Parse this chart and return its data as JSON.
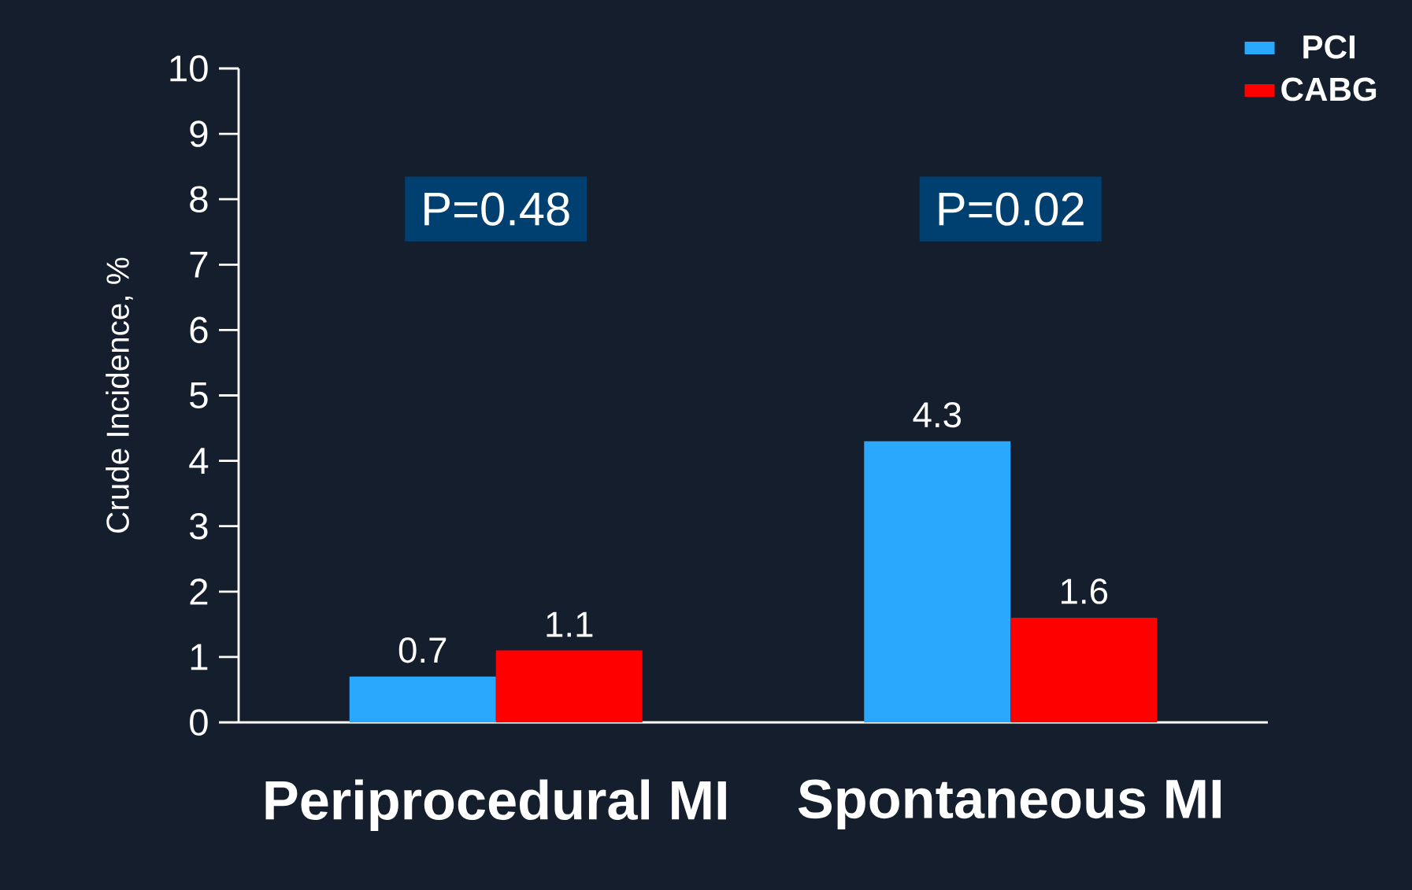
{
  "chart_data": {
    "type": "bar",
    "ylabel": "Crude Incidence, %",
    "categories": [
      "Periprocedural MI",
      "Spontaneous MI"
    ],
    "series": [
      {
        "name": "PCI",
        "color": "#29a8fe",
        "values": [
          0.7,
          4.3
        ]
      },
      {
        "name": "CABG",
        "color": "#ff0000",
        "values": [
          1.1,
          1.6
        ]
      }
    ],
    "ylim": [
      0,
      10
    ],
    "yticks": [
      0,
      1,
      2,
      3,
      4,
      5,
      6,
      7,
      8,
      9,
      10
    ],
    "data_labels": true,
    "legend": "top right",
    "grid": false,
    "annotations": [
      "P=0.48",
      "P=0.02"
    ]
  }
}
